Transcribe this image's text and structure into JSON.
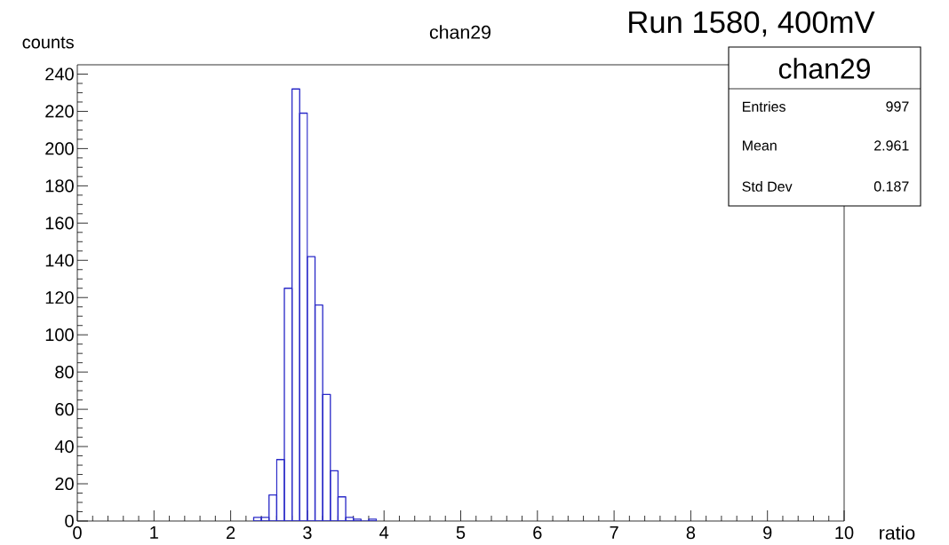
{
  "chart_data": {
    "type": "histogram",
    "title": "chan29",
    "xlabel": "ratio",
    "ylabel": "counts",
    "bins": [
      2.3,
      2.4,
      2.5,
      2.6,
      2.7,
      2.8,
      2.9,
      3.0,
      3.1,
      3.2,
      3.3,
      3.4,
      3.5,
      3.6,
      3.7,
      3.8,
      3.9
    ],
    "values": [
      2,
      2,
      14,
      33,
      125,
      232,
      219,
      142,
      116,
      68,
      27,
      13,
      2,
      1,
      0,
      1
    ],
    "color": "#2b2bc8",
    "xlim": [
      0,
      10
    ],
    "ylim": [
      0,
      245
    ],
    "xticks": [
      0,
      1,
      2,
      3,
      4,
      5,
      6,
      7,
      8,
      9,
      10
    ],
    "yticks": [
      0,
      20,
      40,
      60,
      80,
      100,
      120,
      140,
      160,
      180,
      200,
      220,
      240
    ],
    "annotations": [
      "Run 1580, 400mV",
      "chan29",
      "Entries",
      "997",
      "Mean",
      "2.961",
      "Std Dev",
      "0.187"
    ]
  }
}
